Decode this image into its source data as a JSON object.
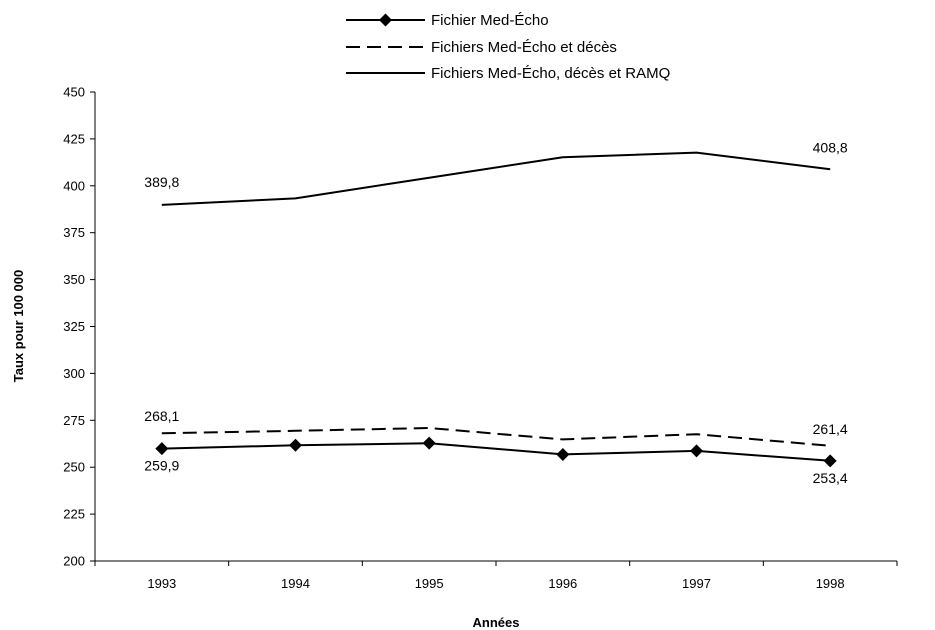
{
  "chart_data": {
    "type": "line",
    "title": "",
    "xlabel": "Années",
    "ylabel": "Taux pour 100 000",
    "categories": [
      "1993",
      "1994",
      "1995",
      "1996",
      "1997",
      "1998"
    ],
    "ylim": [
      200,
      450
    ],
    "yticks": [
      "200",
      "225",
      "250",
      "275",
      "300",
      "325",
      "350",
      "375",
      "400",
      "425",
      "450"
    ],
    "grid": false,
    "legend_position": "top",
    "series": [
      {
        "name": "Fichier Med-Écho",
        "style": "solid-diamond",
        "color": "#000000",
        "values": [
          259.9,
          261.7,
          262.8,
          256.8,
          258.7,
          253.4
        ],
        "labels": [
          {
            "index": 0,
            "text": "259,9"
          },
          {
            "index": 5,
            "text": "253,4"
          }
        ]
      },
      {
        "name": "Fichiers Med-Écho et décès",
        "style": "dashed",
        "color": "#000000",
        "values": [
          268.1,
          269.4,
          270.9,
          264.8,
          267.6,
          261.4
        ],
        "labels": [
          {
            "index": 0,
            "text": "268,1"
          },
          {
            "index": 5,
            "text": "261,4"
          }
        ]
      },
      {
        "name": "Fichiers Med-Écho, décès et RAMQ",
        "style": "solid",
        "color": "#000000",
        "values": [
          389.8,
          393.3,
          404.3,
          415.2,
          417.7,
          408.8
        ],
        "labels": [
          {
            "index": 0,
            "text": "389,8"
          },
          {
            "index": 5,
            "text": "408,8"
          }
        ]
      }
    ]
  }
}
